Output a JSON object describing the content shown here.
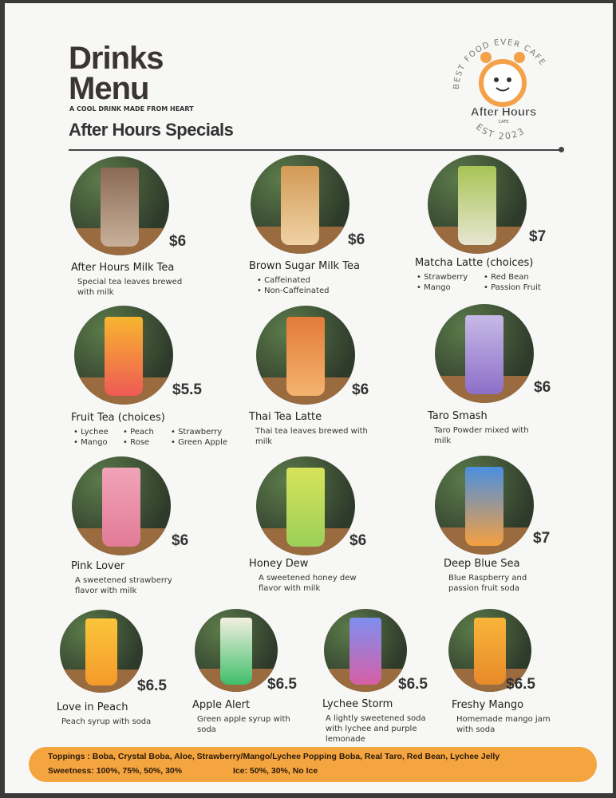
{
  "header": {
    "title_line1": "Drinks",
    "title_line2": "Menu",
    "tagline": "A COOL DRINK MADE FROM HEART",
    "section": "After Hours Specials"
  },
  "logo": {
    "arc_top": "BEST FOOD EVER CAFE",
    "name": "After Hours",
    "sub": "CAFE",
    "arc_bottom": "EST 2023"
  },
  "colors": {
    "accent": "#f5a540",
    "text": "#2b2b2b"
  },
  "items": [
    {
      "name": "After Hours Milk Tea",
      "price": "$6",
      "desc": "Special tea leaves brewed with milk",
      "colors": [
        "#8a6a55",
        "#c9b09a"
      ]
    },
    {
      "name": "Brown Sugar Milk Tea",
      "price": "$6",
      "bullets": [
        "Caffeinated",
        "Non-Caffeinated"
      ],
      "colors": [
        "#d39a55",
        "#f0d2a4"
      ]
    },
    {
      "name": "Matcha Latte (choices)",
      "price": "$7",
      "bullets": [
        "Strawberry",
        "Red Bean",
        "Mango",
        "Passion Fruit"
      ],
      "colors": [
        "#a7c455",
        "#e8e6d2"
      ]
    },
    {
      "name": "Fruit Tea (choices)",
      "price": "$5.5",
      "bullets": [
        "Lychee",
        "Peach",
        "Strawberry",
        "Mango",
        "Rose",
        "Green Apple"
      ],
      "colors": [
        "#f7b52e",
        "#ef5a55"
      ]
    },
    {
      "name": "Thai Tea Latte",
      "price": "$6",
      "desc": "Thai tea leaves brewed with milk",
      "colors": [
        "#e27a3a",
        "#f4b46e"
      ]
    },
    {
      "name": "Taro Smash",
      "price": "$6",
      "desc": "Taro Powder mixed with milk",
      "colors": [
        "#c7b9e6",
        "#8c6fc9"
      ]
    },
    {
      "name": "Pink Lover",
      "price": "$6",
      "desc": "A sweetened strawberry flavor with milk",
      "colors": [
        "#f1a4b7",
        "#e27b98"
      ]
    },
    {
      "name": "Honey Dew",
      "price": "$6",
      "desc": "A sweetened honey dew flavor with milk",
      "colors": [
        "#d7e35a",
        "#9ccf5a"
      ]
    },
    {
      "name": "Deep Blue Sea",
      "price": "$7",
      "desc": "Blue Raspberry and passion fruit soda",
      "colors": [
        "#4a8fe0",
        "#f5a040"
      ]
    },
    {
      "name": "Love in Peach",
      "price": "$6.5",
      "desc": "Peach syrup with soda",
      "colors": [
        "#fbc53a",
        "#f59a2a"
      ]
    },
    {
      "name": "Apple Alert",
      "price": "$6.5",
      "desc": "Green apple syrup with soda",
      "colors": [
        "#f2efe0",
        "#3fbf6a"
      ]
    },
    {
      "name": "Lychee Storm",
      "price": "$6.5",
      "desc": "A lightly sweetened soda with lychee and purple lemonade",
      "colors": [
        "#7e8ef0",
        "#d75fa5"
      ]
    },
    {
      "name": "Freshy Mango",
      "price": "$6.5",
      "desc": "Homemade mango jam with soda",
      "colors": [
        "#f8b53a",
        "#e88a2a"
      ]
    }
  ],
  "footer": {
    "toppings": "Toppings : Boba, Crystal Boba, Aloe, Strawberry/Mango/Lychee Popping Boba, Real Taro, Red Bean, Lychee Jelly",
    "sweetness": "Sweetness: 100%, 75%, 50%, 30%",
    "ice": "Ice: 50%, 30%, No Ice"
  }
}
